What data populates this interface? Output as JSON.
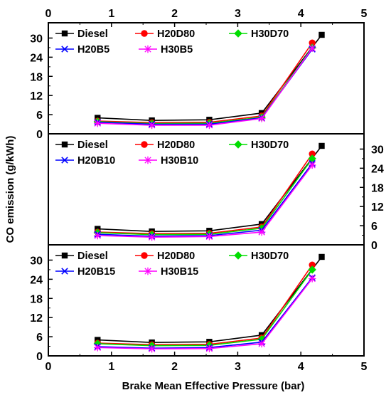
{
  "chart_data": {
    "type": "line",
    "xlabel": "Brake Mean Effective Pressure (bar)",
    "ylabel": "CO emission (g/kWh)",
    "xlim": [
      0,
      5
    ],
    "x_ticks": [
      "0",
      "1",
      "2",
      "3",
      "4",
      "5"
    ],
    "ylim": [
      0,
      33
    ],
    "y_ticks": [
      "0",
      "6",
      "12",
      "18",
      "24",
      "30"
    ],
    "x": [
      0.78,
      1.64,
      2.55,
      3.38,
      4.18
    ],
    "panels": [
      {
        "y_axis_side": "left",
        "series": [
          {
            "name": "Diesel",
            "color": "#000000",
            "marker": "square",
            "x": [
              0.78,
              1.64,
              2.55,
              3.38,
              4.33
            ],
            "values": [
              5.0,
              4.2,
              4.4,
              6.5,
              31.0
            ]
          },
          {
            "name": "H20D80",
            "color": "#ff0000",
            "marker": "circle",
            "values": [
              4.0,
              3.5,
              3.6,
              5.6,
              28.5
            ]
          },
          {
            "name": "H30D70",
            "color": "#00dd00",
            "marker": "diamond",
            "values": [
              3.8,
              3.2,
              3.3,
              5.2,
              27.0
            ]
          },
          {
            "name": "H20B5",
            "color": "#0000ff",
            "marker": "x",
            "values": [
              3.6,
              3.0,
              3.0,
              5.0,
              26.5
            ]
          },
          {
            "name": "H30B5",
            "color": "#ff00ff",
            "marker": "star",
            "values": [
              3.3,
              2.7,
              2.7,
              4.8,
              26.8
            ]
          }
        ]
      },
      {
        "y_axis_side": "right",
        "series": [
          {
            "name": "Diesel",
            "color": "#000000",
            "marker": "square",
            "x": [
              0.78,
              1.64,
              2.55,
              3.38,
              4.33
            ],
            "values": [
              5.0,
              4.2,
              4.4,
              6.5,
              31.0
            ]
          },
          {
            "name": "H20D80",
            "color": "#ff0000",
            "marker": "circle",
            "values": [
              4.0,
              3.5,
              3.6,
              5.6,
              28.5
            ]
          },
          {
            "name": "H30D70",
            "color": "#00dd00",
            "marker": "diamond",
            "values": [
              3.8,
              3.2,
              3.3,
              5.2,
              27.0
            ]
          },
          {
            "name": "H20B10",
            "color": "#0000ff",
            "marker": "x",
            "values": [
              3.3,
              2.7,
              2.9,
              4.6,
              25.5
            ]
          },
          {
            "name": "H30B10",
            "color": "#ff00ff",
            "marker": "star",
            "values": [
              2.9,
              2.4,
              2.6,
              4.0,
              25.0
            ]
          }
        ]
      },
      {
        "y_axis_side": "left",
        "series": [
          {
            "name": "Diesel",
            "color": "#000000",
            "marker": "square",
            "x": [
              0.78,
              1.64,
              2.55,
              3.38,
              4.33
            ],
            "values": [
              5.0,
              4.2,
              4.4,
              6.5,
              31.0
            ]
          },
          {
            "name": "H20D80",
            "color": "#ff0000",
            "marker": "circle",
            "values": [
              4.0,
              3.5,
              3.6,
              5.6,
              28.5
            ]
          },
          {
            "name": "H30D70",
            "color": "#00dd00",
            "marker": "diamond",
            "values": [
              3.8,
              3.2,
              3.3,
              5.2,
              27.0
            ]
          },
          {
            "name": "H20B15",
            "color": "#0000ff",
            "marker": "x",
            "values": [
              2.9,
              2.4,
              2.6,
              4.3,
              24.5
            ]
          },
          {
            "name": "H30B15",
            "color": "#ff00ff",
            "marker": "star",
            "values": [
              2.6,
              2.2,
              2.3,
              3.8,
              24.2
            ]
          }
        ]
      }
    ]
  }
}
